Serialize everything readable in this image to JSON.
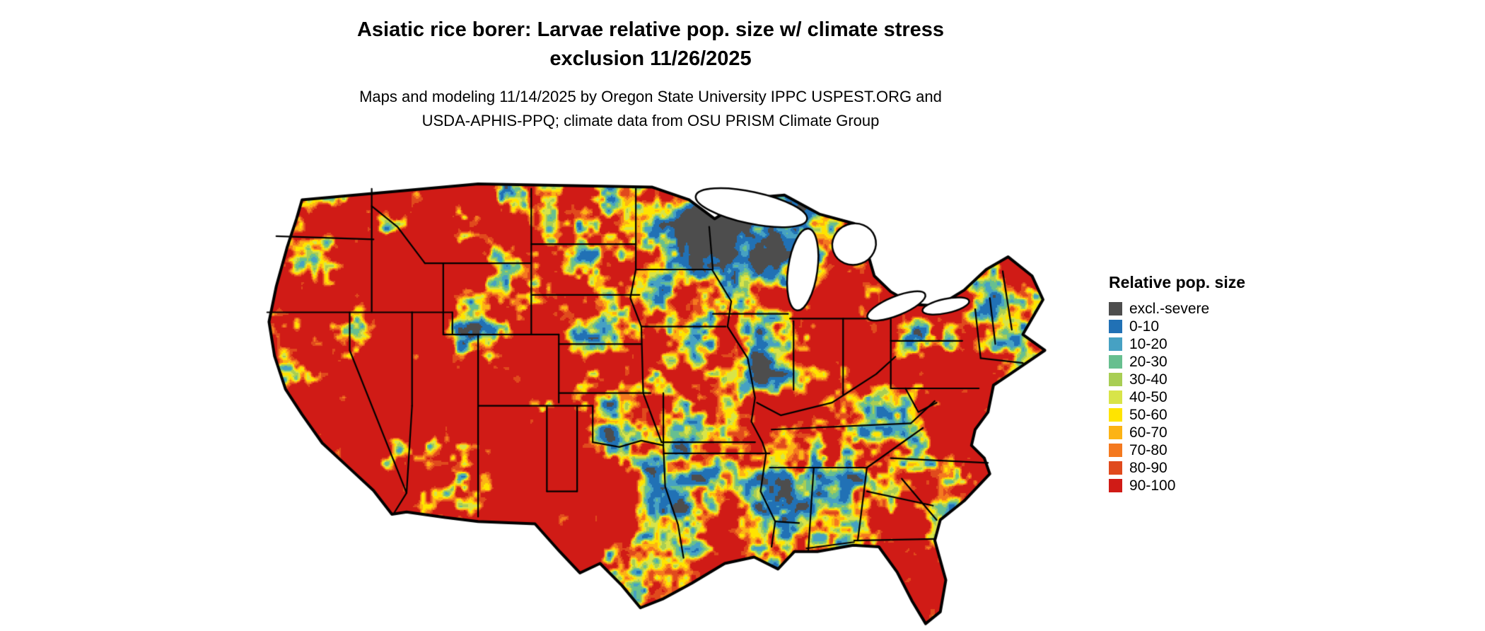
{
  "title": {
    "line1": "Asiatic rice borer: Larvae relative pop. size w/ climate stress",
    "line2": "exclusion 11/26/2025"
  },
  "subtitle": {
    "line1": "Maps and modeling 11/14/2025 by Oregon State University IPPC USPEST.ORG and",
    "line2": "USDA-APHIS-PPQ; climate data from OSU PRISM Climate Group"
  },
  "legend": {
    "title": "Relative pop. size",
    "items": [
      {
        "label": "excl.-severe",
        "color": "#4d4d4d"
      },
      {
        "label": "0-10",
        "color": "#2171b5"
      },
      {
        "label": "10-20",
        "color": "#46a1c3"
      },
      {
        "label": "20-30",
        "color": "#67bf8f"
      },
      {
        "label": "30-40",
        "color": "#a8ce54"
      },
      {
        "label": "40-50",
        "color": "#d8e449"
      },
      {
        "label": "50-60",
        "color": "#ffe400"
      },
      {
        "label": "60-70",
        "color": "#fcb315"
      },
      {
        "label": "70-80",
        "color": "#f4791f"
      },
      {
        "label": "80-90",
        "color": "#e04a1d"
      },
      {
        "label": "90-100",
        "color": "#d01b16"
      }
    ]
  },
  "map": {
    "border_color": "#000000",
    "water_color": "#ffffff"
  }
}
